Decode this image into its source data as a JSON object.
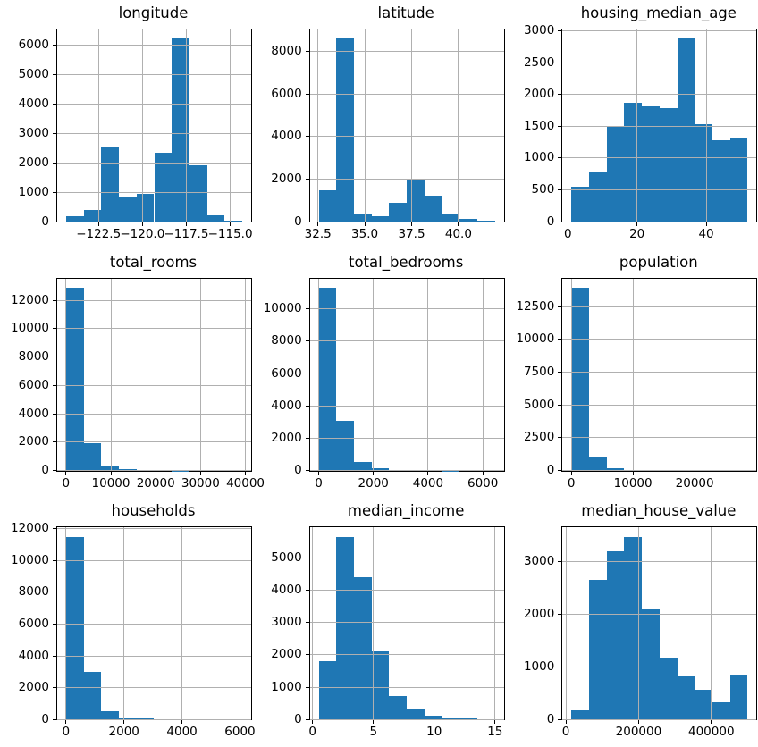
{
  "figure": {
    "background": "#ffffff",
    "bar_color": "#1f77b4",
    "grid_color": "#b0b0b0",
    "spine_color": "#000000",
    "text_color": "#000000",
    "grid_on": true,
    "rows": 3,
    "cols": 3
  },
  "chart_data": [
    {
      "type": "bar",
      "title": "longitude",
      "bins": 10,
      "xmin": -124.35,
      "xmax": -114.31,
      "values": [
        190,
        380,
        2550,
        840,
        950,
        2320,
        6210,
        1920,
        200,
        30
      ],
      "ylim": [
        0,
        6520
      ],
      "xticks": [
        [
          -122.5,
          "−122.5"
        ],
        [
          -120.0,
          "−120.0"
        ],
        [
          -117.5,
          "−117.5"
        ],
        [
          -115.0,
          "−115.0"
        ]
      ],
      "yticks": [
        [
          0,
          "0"
        ],
        [
          1000,
          "1000"
        ],
        [
          2000,
          "2000"
        ],
        [
          3000,
          "3000"
        ],
        [
          4000,
          "4000"
        ],
        [
          5000,
          "5000"
        ],
        [
          6000,
          "6000"
        ]
      ]
    },
    {
      "type": "bar",
      "title": "latitude",
      "bins": 10,
      "xmin": 32.54,
      "xmax": 41.95,
      "values": [
        1450,
        8600,
        390,
        250,
        900,
        2000,
        1200,
        390,
        130,
        60
      ],
      "ylim": [
        0,
        9030
      ],
      "xticks": [
        [
          32.5,
          "32.5"
        ],
        [
          35.0,
          "35.0"
        ],
        [
          37.5,
          "37.5"
        ],
        [
          40.0,
          "40.0"
        ]
      ],
      "yticks": [
        [
          0,
          "0"
        ],
        [
          2000,
          "2000"
        ],
        [
          4000,
          "4000"
        ],
        [
          6000,
          "6000"
        ],
        [
          8000,
          "8000"
        ]
      ]
    },
    {
      "type": "bar",
      "title": "housing_median_age",
      "bins": 10,
      "xmin": 1,
      "xmax": 52,
      "values": [
        550,
        780,
        1500,
        1870,
        1810,
        1780,
        2880,
        1530,
        1280,
        1320
      ],
      "ylim": [
        0,
        3024
      ],
      "xticks": [
        [
          0,
          "0"
        ],
        [
          20,
          "20"
        ],
        [
          40,
          "40"
        ]
      ],
      "yticks": [
        [
          0,
          "0"
        ],
        [
          500,
          "500"
        ],
        [
          1000,
          "1000"
        ],
        [
          1500,
          "1500"
        ],
        [
          2000,
          "2000"
        ],
        [
          2500,
          "2500"
        ],
        [
          3000,
          "3000"
        ]
      ]
    },
    {
      "type": "bar",
      "title": "total_rooms",
      "bins": 10,
      "xmin": 2,
      "xmax": 39320,
      "values": [
        12900,
        1900,
        280,
        90,
        30,
        12,
        6,
        3,
        2,
        1
      ],
      "ylim": [
        0,
        13545
      ],
      "xticks": [
        [
          0,
          "0"
        ],
        [
          10000,
          "10000"
        ],
        [
          20000,
          "20000"
        ],
        [
          30000,
          "30000"
        ],
        [
          40000,
          "40000"
        ]
      ],
      "yticks": [
        [
          0,
          "0"
        ],
        [
          2000,
          "2000"
        ],
        [
          4000,
          "4000"
        ],
        [
          6000,
          "6000"
        ],
        [
          8000,
          "8000"
        ],
        [
          10000,
          "10000"
        ],
        [
          12000,
          "12000"
        ]
      ]
    },
    {
      "type": "bar",
      "title": "total_bedrooms",
      "bins": 10,
      "xmin": 1,
      "xmax": 6445,
      "values": [
        11320,
        3050,
        520,
        140,
        60,
        25,
        10,
        5,
        2,
        1
      ],
      "ylim": [
        0,
        11886
      ],
      "xticks": [
        [
          0,
          "0"
        ],
        [
          2000,
          "2000"
        ],
        [
          4000,
          "4000"
        ],
        [
          6000,
          "6000"
        ]
      ],
      "yticks": [
        [
          0,
          "0"
        ],
        [
          2000,
          "2000"
        ],
        [
          4000,
          "4000"
        ],
        [
          6000,
          "6000"
        ],
        [
          8000,
          "8000"
        ],
        [
          10000,
          "10000"
        ]
      ]
    },
    {
      "type": "bar",
      "title": "population",
      "bins": 10,
      "xmin": 3,
      "xmax": 28600,
      "values": [
        13950,
        1080,
        190,
        40,
        12,
        5,
        2,
        1,
        1,
        1
      ],
      "ylim": [
        0,
        14648
      ],
      "xticks": [
        [
          0,
          "0"
        ],
        [
          10000,
          "10000"
        ],
        [
          20000,
          "20000"
        ]
      ],
      "yticks": [
        [
          0,
          "0"
        ],
        [
          2500,
          "2500"
        ],
        [
          5000,
          "5000"
        ],
        [
          7500,
          "7500"
        ],
        [
          10000,
          "10000"
        ],
        [
          12500,
          "12500"
        ]
      ]
    },
    {
      "type": "bar",
      "title": "households",
      "bins": 10,
      "xmin": 1,
      "xmax": 6082,
      "values": [
        11500,
        2970,
        520,
        130,
        60,
        20,
        8,
        3,
        1,
        1
      ],
      "ylim": [
        0,
        12075
      ],
      "xticks": [
        [
          0,
          "0"
        ],
        [
          2000,
          "2000"
        ],
        [
          4000,
          "4000"
        ],
        [
          6000,
          "6000"
        ]
      ],
      "yticks": [
        [
          0,
          "0"
        ],
        [
          2000,
          "2000"
        ],
        [
          4000,
          "4000"
        ],
        [
          6000,
          "6000"
        ],
        [
          8000,
          "8000"
        ],
        [
          10000,
          "10000"
        ],
        [
          12000,
          "12000"
        ]
      ]
    },
    {
      "type": "bar",
      "title": "median_income",
      "bins": 10,
      "xmin": 0.4999,
      "xmax": 15.0001,
      "values": [
        1800,
        5660,
        4400,
        2100,
        730,
        300,
        120,
        50,
        25,
        15
      ],
      "ylim": [
        0,
        5943
      ],
      "xticks": [
        [
          0,
          "0"
        ],
        [
          5,
          "5"
        ],
        [
          10,
          "10"
        ],
        [
          15,
          "15"
        ]
      ],
      "yticks": [
        [
          0,
          "0"
        ],
        [
          1000,
          "1000"
        ],
        [
          2000,
          "2000"
        ],
        [
          3000,
          "3000"
        ],
        [
          4000,
          "4000"
        ],
        [
          5000,
          "5000"
        ]
      ]
    },
    {
      "type": "bar",
      "title": "median_house_value",
      "bins": 10,
      "xmin": 14999,
      "xmax": 500001,
      "values": [
        170,
        2650,
        3200,
        3480,
        2100,
        1180,
        830,
        570,
        330,
        860
      ],
      "ylim": [
        0,
        3654
      ],
      "xticks": [
        [
          0,
          "0"
        ],
        [
          200000,
          "200000"
        ],
        [
          400000,
          "400000"
        ]
      ],
      "yticks": [
        [
          0,
          "0"
        ],
        [
          1000,
          "1000"
        ],
        [
          2000,
          "2000"
        ],
        [
          3000,
          "3000"
        ]
      ]
    }
  ]
}
